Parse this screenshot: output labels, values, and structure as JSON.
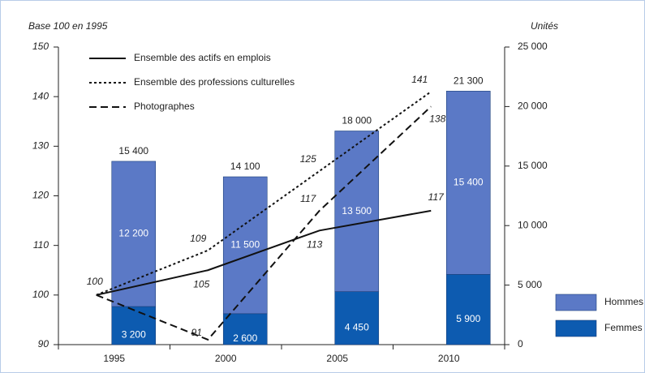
{
  "chart_data": {
    "type": "bar_line",
    "ylabel": "Base 100 en 1995",
    "y2label": "Unités",
    "categories": [
      "1995",
      "2000",
      "2005",
      "2010"
    ],
    "ylim": [
      90,
      150
    ],
    "yticks": [
      90,
      100,
      110,
      120,
      130,
      140,
      150
    ],
    "y2lim": [
      0,
      25000
    ],
    "y2ticks": [
      0,
      {
        "value": 5000,
        "label": "5 000"
      },
      {
        "value": 10000,
        "label": "10 000"
      },
      {
        "value": 15000,
        "label": "15 000"
      },
      {
        "value": 20000,
        "label": "20 000"
      },
      {
        "value": 25000,
        "label": "25 000"
      }
    ],
    "bars": [
      {
        "name": "Femmes",
        "color": "#0d5bb0",
        "axis": "y2",
        "values": [
          3200,
          2600,
          4450,
          5900
        ],
        "value_labels": [
          "3 200",
          "2 600",
          "4 450",
          "5 900"
        ]
      },
      {
        "name": "Hommes",
        "color": "#5b79c6",
        "axis": "y2",
        "values": [
          12200,
          11500,
          13500,
          15400
        ],
        "value_labels": [
          "12 200",
          "11 500",
          "13 500",
          "15 400"
        ]
      }
    ],
    "totals": [
      15400,
      14100,
      18000,
      21300
    ],
    "total_labels": [
      "15 400",
      "14 100",
      "18 000",
      "21 300"
    ],
    "series": [
      {
        "name": "Ensemble des actifs en emplois",
        "color": "#111111",
        "style": "solid",
        "values": [
          100,
          105,
          113,
          117
        ]
      },
      {
        "name": "Ensemble des professions culturelles",
        "color": "#111111",
        "style": "dotted",
        "values": [
          100,
          109,
          125,
          141
        ]
      },
      {
        "name": "Photographes",
        "color": "#111111",
        "style": "dashed",
        "values": [
          100,
          91,
          117,
          138
        ]
      }
    ]
  }
}
